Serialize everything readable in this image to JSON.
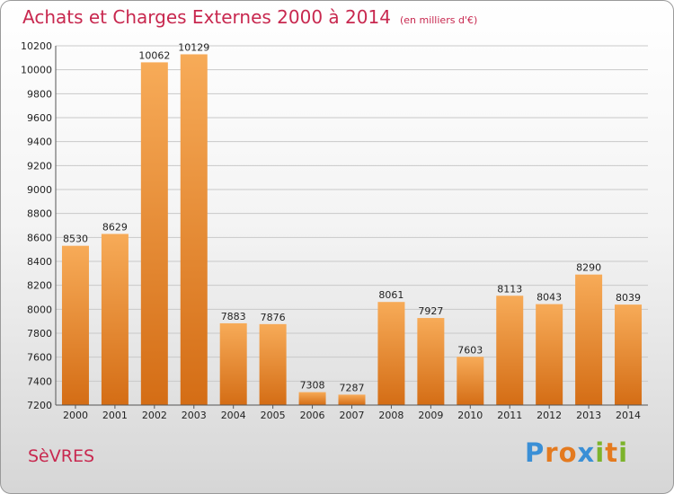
{
  "header": {
    "title": "Achats et Charges Externes 2000 à 2014",
    "unit": "(en milliers d'€)"
  },
  "footer": {
    "city": "SèVRES",
    "logo_letters": [
      "P",
      "r",
      "o",
      "x",
      "i",
      "t",
      "i"
    ],
    "logo_colors": [
      "#3a8fd6",
      "#e47a1f",
      "#e47a1f",
      "#3a8fd6",
      "#7cb32b",
      "#e47a1f",
      "#7cb32b"
    ]
  },
  "colors": {
    "bar_top": "#f7ab58",
    "bar_bottom": "#d46d15",
    "title": "#c8284f",
    "grid": "#c9c9c9"
  },
  "chart_data": {
    "type": "bar",
    "categories": [
      "2000",
      "2001",
      "2002",
      "2003",
      "2004",
      "2005",
      "2006",
      "2007",
      "2008",
      "2009",
      "2010",
      "2011",
      "2012",
      "2013",
      "2014"
    ],
    "values": [
      8530,
      8629,
      10062,
      10129,
      7883,
      7876,
      7308,
      7287,
      8061,
      7927,
      7603,
      8113,
      8043,
      8290,
      8039
    ],
    "ylim": [
      7200,
      10200
    ],
    "yticks": [
      7200,
      7400,
      7600,
      7800,
      8000,
      8200,
      8400,
      8600,
      8800,
      9000,
      9200,
      9400,
      9600,
      9800,
      10000,
      10200
    ],
    "grid": true,
    "title": "Achats et Charges Externes 2000 à 2014",
    "xlabel": "",
    "ylabel": ""
  }
}
